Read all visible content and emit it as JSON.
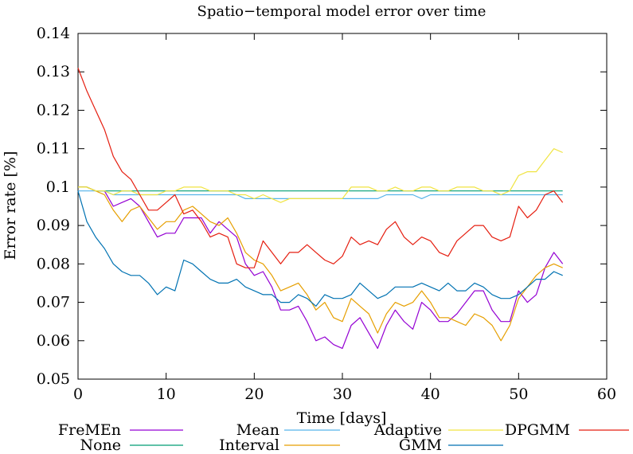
{
  "chart_data": {
    "type": "line",
    "title": "Spatio−temporal model error over time",
    "xlabel": "Time [days]",
    "ylabel": "Error rate [%]",
    "xlim": [
      0,
      60
    ],
    "ylim": [
      0.05,
      0.14
    ],
    "xticks": [
      0,
      10,
      20,
      30,
      40,
      50,
      60
    ],
    "yticks": [
      0.05,
      0.06,
      0.07,
      0.08,
      0.09,
      0.1,
      0.11,
      0.12,
      0.13,
      0.14
    ],
    "xtick_labels": [
      "0",
      "10",
      "20",
      "30",
      "40",
      "50",
      "60"
    ],
    "ytick_labels": [
      "0.05",
      "0.06",
      "0.07",
      "0.08",
      "0.09",
      "0.1",
      "0.11",
      "0.12",
      "0.13",
      "0.14"
    ],
    "grid": false,
    "legend_position": "bottom",
    "series": [
      {
        "name": "FreMEn",
        "color": "#9400d3",
        "x": [
          0,
          1,
          2,
          3,
          4,
          5,
          6,
          7,
          8,
          9,
          10,
          11,
          12,
          13,
          14,
          15,
          16,
          17,
          18,
          19,
          20,
          21,
          22,
          23,
          24,
          25,
          26,
          27,
          28,
          29,
          30,
          31,
          32,
          33,
          34,
          35,
          36,
          37,
          38,
          39,
          40,
          41,
          42,
          43,
          44,
          45,
          46,
          47,
          48,
          49,
          50,
          51,
          52,
          53,
          54,
          55
        ],
        "y": [
          0.1,
          0.1,
          0.099,
          0.099,
          0.095,
          0.096,
          0.097,
          0.095,
          0.091,
          0.087,
          0.088,
          0.088,
          0.092,
          0.092,
          0.092,
          0.088,
          0.091,
          0.089,
          0.087,
          0.08,
          0.077,
          0.078,
          0.074,
          0.068,
          0.068,
          0.069,
          0.065,
          0.06,
          0.061,
          0.059,
          0.058,
          0.064,
          0.066,
          0.062,
          0.058,
          0.064,
          0.068,
          0.065,
          0.063,
          0.07,
          0.068,
          0.065,
          0.065,
          0.067,
          0.07,
          0.073,
          0.073,
          0.068,
          0.065,
          0.065,
          0.073,
          0.07,
          0.072,
          0.079,
          0.083,
          0.08
        ]
      },
      {
        "name": "None",
        "color": "#009e73",
        "x": [
          0,
          1,
          2,
          3,
          4,
          5,
          6,
          7,
          8,
          9,
          10,
          11,
          12,
          13,
          14,
          15,
          16,
          17,
          18,
          19,
          20,
          21,
          22,
          23,
          24,
          25,
          26,
          27,
          28,
          29,
          30,
          31,
          32,
          33,
          34,
          35,
          36,
          37,
          38,
          39,
          40,
          41,
          42,
          43,
          44,
          45,
          46,
          47,
          48,
          49,
          50,
          51,
          52,
          53,
          54,
          55
        ],
        "y": [
          0.1,
          0.1,
          0.099,
          0.099,
          0.099,
          0.099,
          0.099,
          0.099,
          0.099,
          0.099,
          0.099,
          0.099,
          0.099,
          0.099,
          0.099,
          0.099,
          0.099,
          0.099,
          0.099,
          0.099,
          0.099,
          0.099,
          0.099,
          0.099,
          0.099,
          0.099,
          0.099,
          0.099,
          0.099,
          0.099,
          0.099,
          0.099,
          0.099,
          0.099,
          0.099,
          0.099,
          0.099,
          0.099,
          0.099,
          0.099,
          0.099,
          0.099,
          0.099,
          0.099,
          0.099,
          0.099,
          0.099,
          0.099,
          0.099,
          0.099,
          0.099,
          0.099,
          0.099,
          0.099,
          0.099,
          0.099
        ]
      },
      {
        "name": "Mean",
        "color": "#56b4e9",
        "x": [
          0,
          1,
          2,
          3,
          4,
          5,
          6,
          7,
          8,
          9,
          10,
          11,
          12,
          13,
          14,
          15,
          16,
          17,
          18,
          19,
          20,
          21,
          22,
          23,
          24,
          25,
          26,
          27,
          28,
          29,
          30,
          31,
          32,
          33,
          34,
          35,
          36,
          37,
          38,
          39,
          40,
          41,
          42,
          43,
          44,
          45,
          46,
          47,
          48,
          49,
          50,
          51,
          52,
          53,
          54,
          55
        ],
        "y": [
          0.099,
          0.099,
          0.099,
          0.099,
          0.098,
          0.098,
          0.098,
          0.098,
          0.098,
          0.098,
          0.098,
          0.098,
          0.098,
          0.098,
          0.098,
          0.098,
          0.098,
          0.098,
          0.098,
          0.097,
          0.097,
          0.097,
          0.097,
          0.097,
          0.097,
          0.097,
          0.097,
          0.097,
          0.097,
          0.097,
          0.097,
          0.097,
          0.097,
          0.097,
          0.097,
          0.098,
          0.098,
          0.098,
          0.098,
          0.097,
          0.098,
          0.098,
          0.098,
          0.098,
          0.098,
          0.098,
          0.098,
          0.098,
          0.098,
          0.098,
          0.098,
          0.098,
          0.098,
          0.098,
          0.098,
          0.098
        ]
      },
      {
        "name": "Interval",
        "color": "#e69f00",
        "x": [
          0,
          1,
          2,
          3,
          4,
          5,
          6,
          7,
          8,
          9,
          10,
          11,
          12,
          13,
          14,
          15,
          16,
          17,
          18,
          19,
          20,
          21,
          22,
          23,
          24,
          25,
          26,
          27,
          28,
          29,
          30,
          31,
          32,
          33,
          34,
          35,
          36,
          37,
          38,
          39,
          40,
          41,
          42,
          43,
          44,
          45,
          46,
          47,
          48,
          49,
          50,
          51,
          52,
          53,
          54,
          55
        ],
        "y": [
          0.1,
          0.1,
          0.099,
          0.098,
          0.094,
          0.091,
          0.094,
          0.095,
          0.092,
          0.089,
          0.091,
          0.091,
          0.094,
          0.095,
          0.093,
          0.091,
          0.09,
          0.092,
          0.088,
          0.083,
          0.081,
          0.08,
          0.077,
          0.073,
          0.074,
          0.075,
          0.072,
          0.068,
          0.07,
          0.066,
          0.065,
          0.071,
          0.069,
          0.067,
          0.062,
          0.067,
          0.07,
          0.069,
          0.07,
          0.073,
          0.07,
          0.066,
          0.066,
          0.065,
          0.064,
          0.067,
          0.066,
          0.064,
          0.06,
          0.064,
          0.071,
          0.074,
          0.077,
          0.079,
          0.08,
          0.079
        ]
      },
      {
        "name": "Adaptive",
        "color": "#f0e442",
        "x": [
          0,
          1,
          2,
          3,
          4,
          5,
          6,
          7,
          8,
          9,
          10,
          11,
          12,
          13,
          14,
          15,
          16,
          17,
          18,
          19,
          20,
          21,
          22,
          23,
          24,
          25,
          26,
          27,
          28,
          29,
          30,
          31,
          32,
          33,
          34,
          35,
          36,
          37,
          38,
          39,
          40,
          41,
          42,
          43,
          44,
          45,
          46,
          47,
          48,
          49,
          50,
          51,
          52,
          53,
          54,
          55
        ],
        "y": [
          0.1,
          0.1,
          0.099,
          0.099,
          0.098,
          0.099,
          0.099,
          0.098,
          0.098,
          0.098,
          0.099,
          0.099,
          0.1,
          0.1,
          0.1,
          0.099,
          0.099,
          0.099,
          0.098,
          0.098,
          0.097,
          0.098,
          0.097,
          0.096,
          0.097,
          0.097,
          0.097,
          0.097,
          0.097,
          0.097,
          0.097,
          0.1,
          0.1,
          0.1,
          0.099,
          0.099,
          0.1,
          0.099,
          0.099,
          0.1,
          0.1,
          0.099,
          0.099,
          0.1,
          0.1,
          0.1,
          0.099,
          0.099,
          0.098,
          0.099,
          0.103,
          0.104,
          0.104,
          0.107,
          0.11,
          0.109
        ]
      },
      {
        "name": "GMM",
        "color": "#0072b2",
        "x": [
          0,
          1,
          2,
          3,
          4,
          5,
          6,
          7,
          8,
          9,
          10,
          11,
          12,
          13,
          14,
          15,
          16,
          17,
          18,
          19,
          20,
          21,
          22,
          23,
          24,
          25,
          26,
          27,
          28,
          29,
          30,
          31,
          32,
          33,
          34,
          35,
          36,
          37,
          38,
          39,
          40,
          41,
          42,
          43,
          44,
          45,
          46,
          47,
          48,
          49,
          50,
          51,
          52,
          53,
          54,
          55
        ],
        "y": [
          0.099,
          0.091,
          0.087,
          0.084,
          0.08,
          0.078,
          0.077,
          0.077,
          0.075,
          0.072,
          0.074,
          0.073,
          0.081,
          0.08,
          0.078,
          0.076,
          0.075,
          0.075,
          0.076,
          0.074,
          0.073,
          0.072,
          0.072,
          0.07,
          0.07,
          0.072,
          0.071,
          0.069,
          0.072,
          0.071,
          0.071,
          0.072,
          0.075,
          0.073,
          0.071,
          0.072,
          0.074,
          0.074,
          0.074,
          0.075,
          0.074,
          0.073,
          0.075,
          0.073,
          0.073,
          0.075,
          0.074,
          0.072,
          0.071,
          0.071,
          0.072,
          0.074,
          0.076,
          0.076,
          0.078,
          0.077
        ]
      },
      {
        "name": "DPGMM",
        "color": "#e51e10",
        "x": [
          0,
          1,
          2,
          3,
          4,
          5,
          6,
          7,
          8,
          9,
          10,
          11,
          12,
          13,
          14,
          15,
          16,
          17,
          18,
          19,
          20,
          21,
          22,
          23,
          24,
          25,
          26,
          27,
          28,
          29,
          30,
          31,
          32,
          33,
          34,
          35,
          36,
          37,
          38,
          39,
          40,
          41,
          42,
          43,
          44,
          45,
          46,
          47,
          48,
          49,
          50,
          51,
          52,
          53,
          54,
          55
        ],
        "y": [
          0.131,
          0.125,
          0.12,
          0.115,
          0.108,
          0.104,
          0.102,
          0.098,
          0.094,
          0.094,
          0.096,
          0.098,
          0.093,
          0.094,
          0.091,
          0.087,
          0.088,
          0.087,
          0.08,
          0.079,
          0.079,
          0.086,
          0.083,
          0.08,
          0.083,
          0.083,
          0.085,
          0.083,
          0.081,
          0.08,
          0.082,
          0.087,
          0.085,
          0.086,
          0.085,
          0.089,
          0.091,
          0.087,
          0.085,
          0.087,
          0.086,
          0.083,
          0.082,
          0.086,
          0.088,
          0.09,
          0.09,
          0.087,
          0.086,
          0.087,
          0.095,
          0.092,
          0.094,
          0.098,
          0.099,
          0.096
        ]
      }
    ]
  }
}
